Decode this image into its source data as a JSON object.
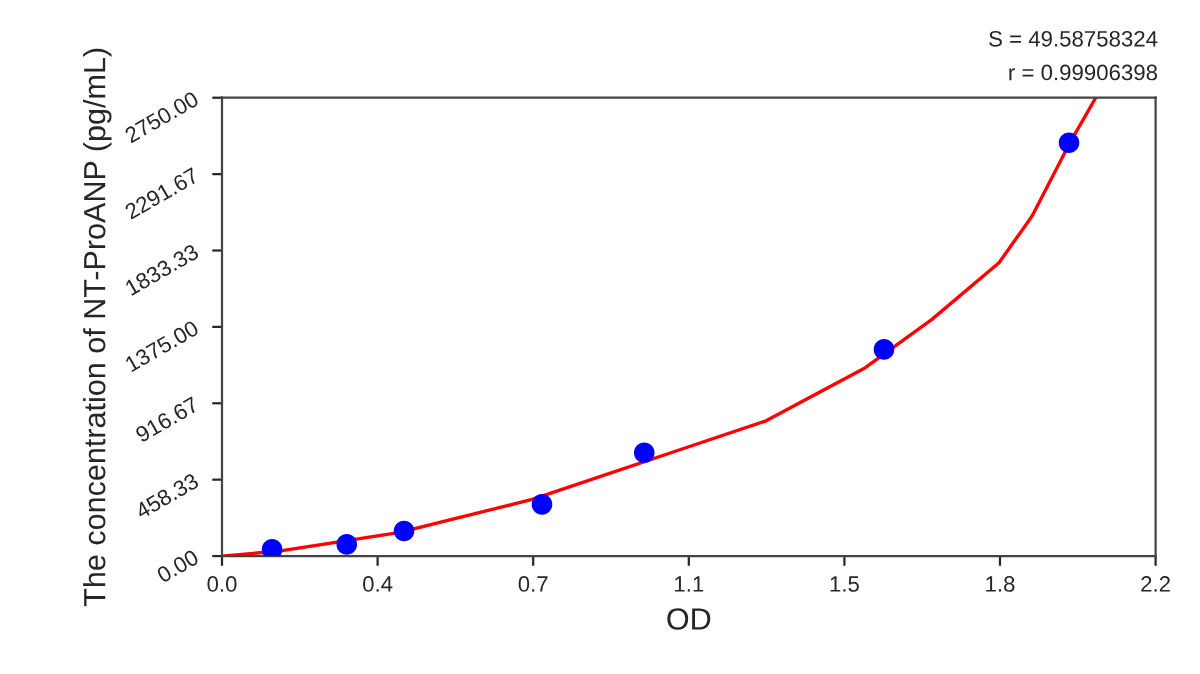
{
  "chart_data": {
    "type": "scatter",
    "xlabel": "OD",
    "ylabel": "The concentration of NT-ProANP (pg/mL)",
    "annotations": [
      "S = 49.58758324",
      "r = 0.99906398"
    ],
    "series": [
      {
        "color": "#0000ff",
        "marker": "circle",
        "x": [
          0.118,
          0.294,
          0.429,
          0.754,
          0.995,
          1.56,
          1.996
        ],
        "values": [
          40,
          70,
          150,
          310,
          620,
          1240,
          2480
        ]
      },
      {
        "type": "line",
        "color": "#ff0000",
        "marker": "none",
        "line_style": "solid",
        "x": [
          0,
          0.134,
          0.416,
          0.731,
          1.093,
          1.281,
          1.516,
          1.673,
          1.831,
          1.909,
          1.996,
          2.059
        ],
        "values": [
          0,
          30,
          140,
          340,
          650,
          810,
          1130,
          1420,
          1760,
          2040,
          2470,
          2750
        ]
      }
    ],
    "xlim": [
      0,
      2.2
    ],
    "xticks": [
      {
        "value": 0,
        "label": "0.0"
      },
      {
        "value": 0.3667,
        "label": "0.4"
      },
      {
        "value": 0.7333,
        "label": "0.7"
      },
      1.1,
      {
        "value": 1.4667,
        "label": "1.5"
      },
      {
        "value": 1.8333,
        "label": "1.8"
      },
      2.2
    ],
    "ylim": [
      0,
      2750
    ],
    "yticks": [
      {
        "value": 0,
        "label": "0.00"
      },
      458.33,
      916.67,
      {
        "value": 1375,
        "label": "1375.00"
      },
      1833.33,
      2291.67,
      {
        "value": 2750,
        "label": "2750.00"
      }
    ],
    "grid": false,
    "legend": false
  }
}
